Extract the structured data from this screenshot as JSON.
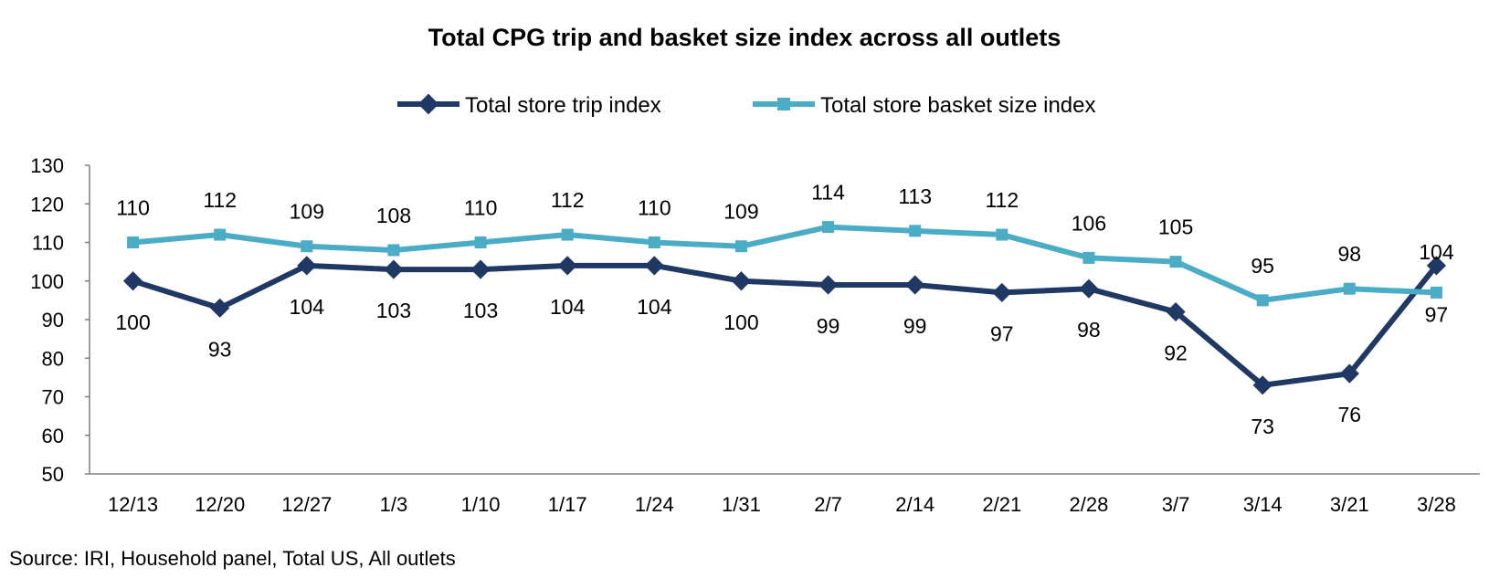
{
  "chart_data": {
    "type": "line",
    "title": "Total CPG trip and basket size index across all outlets",
    "xlabel": "",
    "ylabel": "",
    "categories": [
      "12/13",
      "12/20",
      "12/27",
      "1/3",
      "1/10",
      "1/17",
      "1/24",
      "1/31",
      "2/7",
      "2/14",
      "2/21",
      "2/28",
      "3/7",
      "3/14",
      "3/21",
      "3/28"
    ],
    "ylim": [
      50,
      130
    ],
    "yticks": [
      50,
      60,
      70,
      80,
      90,
      100,
      110,
      120,
      130
    ],
    "grid": false,
    "legend_position": "top",
    "series": [
      {
        "name": "Total store trip index",
        "color": "#1f3864",
        "marker": "diamond",
        "values": [
          100,
          93,
          104,
          103,
          103,
          104,
          104,
          100,
          99,
          99,
          97,
          98,
          92,
          73,
          76,
          104
        ]
      },
      {
        "name": "Total store basket size index",
        "color": "#4bacc6",
        "marker": "square",
        "values": [
          110,
          112,
          109,
          108,
          110,
          112,
          110,
          109,
          114,
          113,
          112,
          106,
          105,
          95,
          98,
          97
        ]
      }
    ],
    "source": "Source: IRI, Household panel, Total US, All outlets"
  }
}
